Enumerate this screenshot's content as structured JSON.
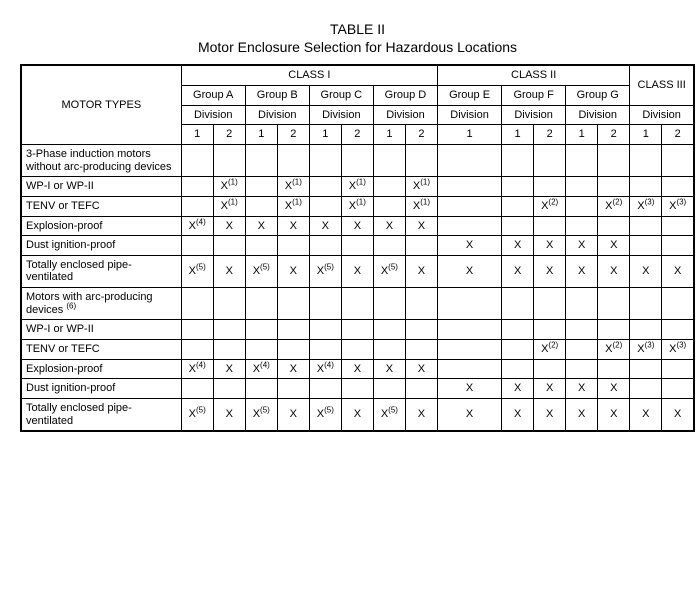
{
  "table_number": "TABLE II",
  "table_title": "Motor Enclosure Selection for Hazardous Locations",
  "header": {
    "motor_types": "MOTOR TYPES",
    "class1": "CLASS I",
    "class2": "CLASS II",
    "class3": "CLASS III",
    "groupA": "Group A",
    "groupB": "Group B",
    "groupC": "Group C",
    "groupD": "Group D",
    "groupE": "Group E",
    "groupF": "Group F",
    "groupG": "Group G",
    "division": "Division",
    "d1": "1",
    "d2": "2"
  },
  "rows": {
    "r0": {
      "label": "3-Phase induction motors without arc-producing devices"
    },
    "r1": {
      "label": "WP-I or WP-II",
      "c": [
        "",
        "X(1)",
        "",
        "X(1)",
        "",
        "X(1)",
        "",
        "X(1)",
        "",
        "",
        "",
        "",
        "",
        "",
        ""
      ]
    },
    "r2": {
      "label": "TENV or TEFC",
      "c": [
        "",
        "X(1)",
        "",
        "X(1)",
        "",
        "X(1)",
        "",
        "X(1)",
        "",
        "",
        "X(2)",
        "",
        "X(2)",
        "X(3)",
        "X(3)"
      ]
    },
    "r3": {
      "label": "Explosion-proof",
      "c": [
        "X(4)",
        "X",
        "X",
        "X",
        "X",
        "X",
        "X",
        "X",
        "",
        "",
        "",
        "",
        "",
        "",
        ""
      ]
    },
    "r4": {
      "label": "Dust ignition-proof",
      "c": [
        "",
        "",
        "",
        "",
        "",
        "",
        "",
        "",
        "X",
        "X",
        "X",
        "X",
        "X",
        "",
        ""
      ]
    },
    "r5": {
      "label": "Totally enclosed pipe-ventilated",
      "c": [
        "X(5)",
        "X",
        "X(5)",
        "X",
        "X(5)",
        "X",
        "X(5)",
        "X",
        "X",
        "X",
        "X",
        "X",
        "X",
        "X",
        "X"
      ]
    },
    "r6": {
      "label": "Motors with arc-producing devices (6)"
    },
    "r7": {
      "label": "WP-I or WP-II",
      "c": [
        "",
        "",
        "",
        "",
        "",
        "",
        "",
        "",
        "",
        "",
        "",
        "",
        "",
        "",
        ""
      ]
    },
    "r8": {
      "label": "TENV or TEFC",
      "c": [
        "",
        "",
        "",
        "",
        "",
        "",
        "",
        "",
        "",
        "",
        "X(2)",
        "",
        "X(2)",
        "X(3)",
        "X(3)"
      ]
    },
    "r9": {
      "label": "Explosion-proof",
      "c": [
        "X(4)",
        "X",
        "X(4)",
        "X",
        "X(4)",
        "X",
        "X",
        "X",
        "",
        "",
        "",
        "",
        "",
        "",
        ""
      ]
    },
    "r10": {
      "label": "Dust ignition-proof",
      "c": [
        "",
        "",
        "",
        "",
        "",
        "",
        "",
        "",
        "X",
        "X",
        "X",
        "X",
        "X",
        "",
        ""
      ]
    },
    "r11": {
      "label": "Totally enclosed pipe-ventilated",
      "c": [
        "X(5)",
        "X",
        "X(5)",
        "X",
        "X(5)",
        "X",
        "X(5)",
        "X",
        "X",
        "X",
        "X",
        "X",
        "X",
        "X",
        "X"
      ]
    }
  }
}
